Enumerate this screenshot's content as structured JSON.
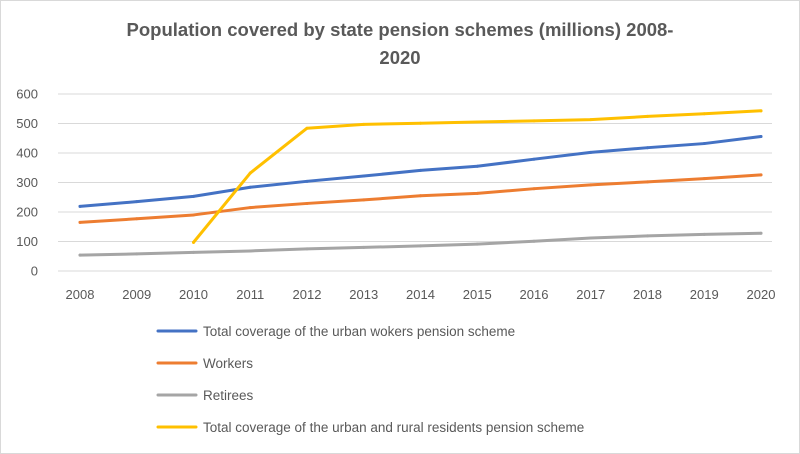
{
  "chart_data": {
    "type": "line",
    "title_line1": "Population covered by state pension schemes (millions) 2008-",
    "title_line2": "2020",
    "x": [
      "2008",
      "2009",
      "2010",
      "2011",
      "2012",
      "2013",
      "2014",
      "2015",
      "2016",
      "2017",
      "2018",
      "2019",
      "2020"
    ],
    "ylim": [
      0,
      600
    ],
    "yticks": [
      0,
      100,
      200,
      300,
      400,
      500,
      600
    ],
    "grid": true,
    "legend_position": "bottom",
    "series": [
      {
        "name": "Total coverage of the urban wokers pension scheme",
        "color": "#4472c4",
        "values": [
          219,
          235,
          253,
          284,
          304,
          322,
          341,
          355,
          379,
          402,
          418,
          432,
          456
        ]
      },
      {
        "name": "Workers",
        "color": "#ed7d31",
        "values": [
          165,
          177,
          190,
          215,
          229,
          241,
          255,
          263,
          279,
          292,
          302,
          313,
          326
        ]
      },
      {
        "name": "Retirees",
        "color": "#a5a5a5",
        "values": [
          54,
          58,
          63,
          68,
          75,
          80,
          85,
          91,
          101,
          112,
          119,
          124,
          128
        ]
      },
      {
        "name": "Total coverage of the urban and rural residents pension scheme",
        "color": "#ffc000",
        "values": [
          null,
          null,
          97,
          332,
          484,
          497,
          501,
          505,
          509,
          513,
          524,
          533,
          543
        ]
      }
    ]
  }
}
